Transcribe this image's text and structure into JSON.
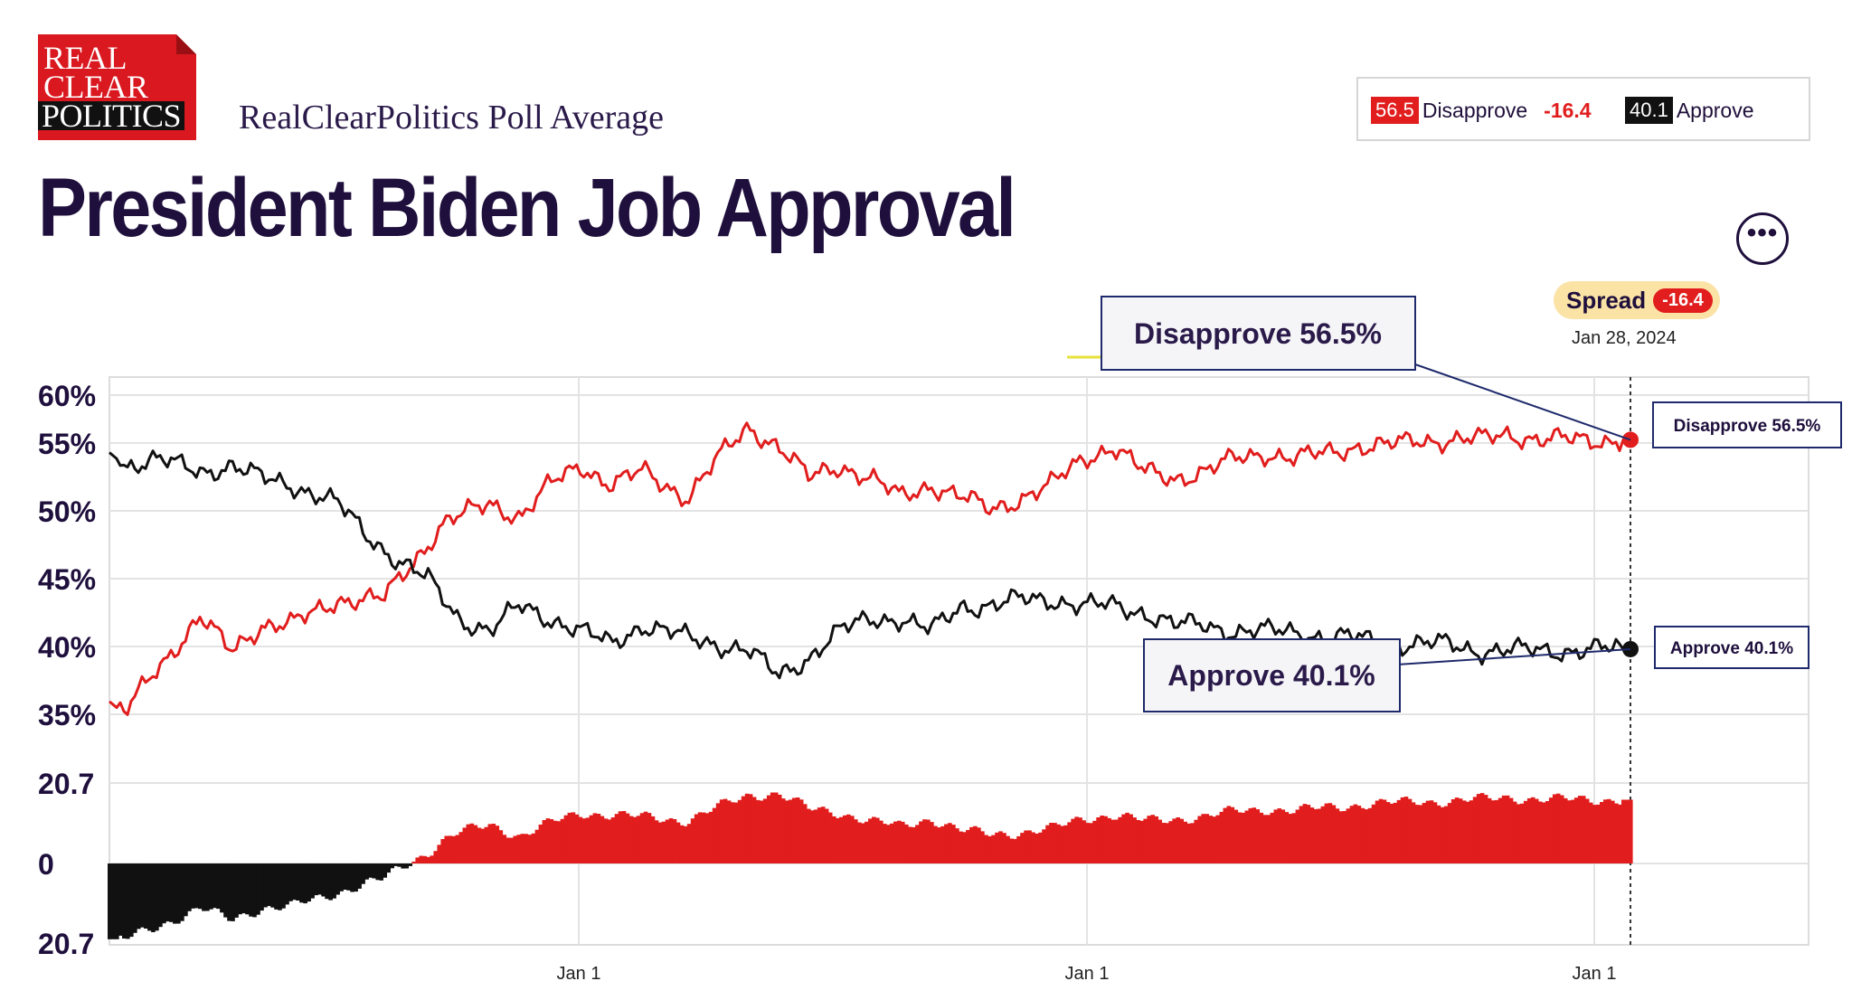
{
  "brand": {
    "logo_lines": [
      "REAL",
      "CLEAR",
      "POLITICS"
    ],
    "subtitle": "RealClearPolitics Poll Average"
  },
  "title": "President Biden Job Approval",
  "legend": {
    "disapprove_value": "56.5",
    "disapprove_label": "Disapprove",
    "spread": "-16.4",
    "approve_value": "40.1",
    "approve_label": "Approve"
  },
  "more_button": "•••",
  "spread_box": {
    "label": "Spread",
    "value": "-16.4",
    "date": "Jan 28, 2024"
  },
  "callouts": {
    "disapprove_big": "Disapprove 56.5%",
    "approve_big": "Approve 40.1%",
    "disapprove_small": "Disapprove 56.5%",
    "approve_small": "Approve 40.1%"
  },
  "colors": {
    "disapprove": "#e11d1d",
    "approve": "#111111",
    "text": "#1e0f3c",
    "grid": "#e3e3e3"
  },
  "chart_data": {
    "type": "line",
    "title": "President Biden Job Approval",
    "x_tick_labels": [
      "Jan 1",
      "Jan 1",
      "Jan 1"
    ],
    "y_tick_labels": [
      "60%",
      "55%",
      "50%",
      "45%",
      "40%",
      "35%"
    ],
    "ylim": [
      35,
      60
    ],
    "spread_tick_labels": [
      "20.7",
      "0",
      "20.7"
    ],
    "spread_ylim": [
      -20.7,
      20.7
    ],
    "grid": true,
    "series": [
      {
        "name": "Disapprove",
        "color": "#e11d1d",
        "t": [
          0,
          0.01,
          0.03,
          0.06,
          0.08,
          0.1,
          0.12,
          0.15,
          0.18,
          0.2,
          0.22,
          0.25,
          0.27,
          0.29,
          0.31,
          0.33,
          0.35,
          0.38,
          0.4,
          0.42,
          0.44,
          0.46,
          0.48,
          0.5,
          0.52,
          0.54,
          0.56,
          0.58,
          0.6,
          0.62,
          0.64,
          0.66,
          0.68,
          0.7,
          0.72,
          0.74,
          0.76,
          0.78,
          0.8,
          0.82,
          0.84,
          0.86,
          0.88,
          0.9,
          0.92,
          0.94,
          0.96,
          0.98,
          1.0
        ],
        "values": [
          36,
          35,
          38.5,
          42.5,
          40,
          42,
          42,
          44,
          44,
          47,
          50,
          51.5,
          50.5,
          53,
          54.5,
          53,
          54,
          52,
          55,
          57.5,
          56,
          53.5,
          54.5,
          53.5,
          52,
          53,
          52,
          51,
          52,
          53,
          55,
          56,
          54,
          53.5,
          54,
          55,
          55.5,
          55,
          55.5,
          56,
          56,
          56.5,
          56.5,
          56.5,
          57,
          56.5,
          56.5,
          56.5,
          56.5
        ]
      },
      {
        "name": "Approve",
        "color": "#111111",
        "t": [
          0,
          0.01,
          0.03,
          0.06,
          0.08,
          0.1,
          0.12,
          0.15,
          0.17,
          0.19,
          0.21,
          0.23,
          0.25,
          0.27,
          0.3,
          0.33,
          0.35,
          0.38,
          0.4,
          0.42,
          0.44,
          0.46,
          0.48,
          0.5,
          0.52,
          0.54,
          0.56,
          0.58,
          0.6,
          0.62,
          0.64,
          0.66,
          0.68,
          0.7,
          0.72,
          0.74,
          0.76,
          0.78,
          0.8,
          0.82,
          0.84,
          0.86,
          0.88,
          0.9,
          0.92,
          0.94,
          0.96,
          0.98,
          1.0
        ],
        "values": [
          55.5,
          54.5,
          55,
          54,
          54.5,
          53.5,
          53,
          51.5,
          49,
          47,
          45.5,
          42.5,
          41.5,
          43.5,
          42,
          40.5,
          42,
          41,
          40.5,
          40,
          38,
          39.5,
          41.5,
          42.5,
          42.5,
          41.5,
          43.5,
          43.5,
          44,
          44,
          43.5,
          43.5,
          43,
          42,
          42,
          41.5,
          41.5,
          41.5,
          41,
          41,
          40.5,
          40.5,
          40.5,
          40,
          40,
          40,
          40,
          40.1,
          40.1
        ]
      }
    ]
  }
}
